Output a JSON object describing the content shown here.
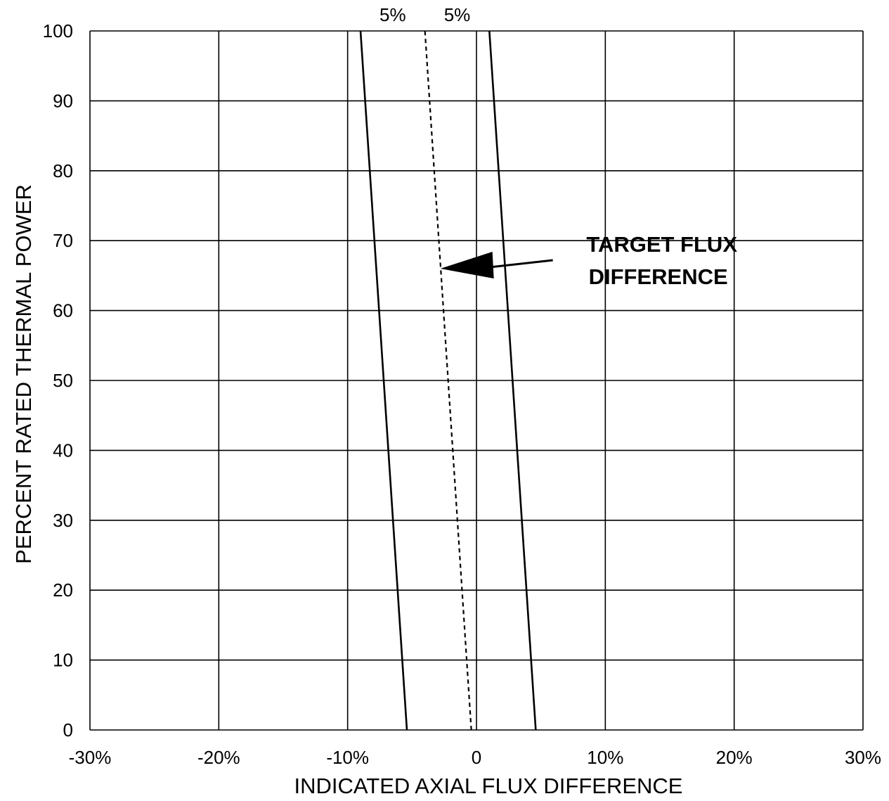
{
  "chart_data": {
    "type": "line",
    "title": "",
    "xlabel": "INDICATED AXIAL FLUX DIFFERENCE",
    "ylabel": "PERCENT RATED THERMAL POWER",
    "xlim": [
      -30,
      30
    ],
    "ylim": [
      0,
      100
    ],
    "grid": true,
    "x_ticks": [
      -30,
      -20,
      -10,
      0,
      10,
      20,
      30
    ],
    "x_tick_labels": [
      "-30%",
      "-20%",
      "-10%",
      "0",
      "10%",
      "20%",
      "30%"
    ],
    "y_ticks": [
      0,
      10,
      20,
      30,
      40,
      50,
      60,
      70,
      80,
      90,
      100
    ],
    "y_tick_labels": [
      "0",
      "10",
      "20",
      "30",
      "40",
      "50",
      "60",
      "70",
      "80",
      "90",
      "100"
    ],
    "series": [
      {
        "style": "solid",
        "x": [
          -5.4,
          -9.0
        ],
        "y": [
          0,
          100
        ]
      },
      {
        "style": "dashed",
        "x": [
          -0.4,
          -4.0
        ],
        "y": [
          0,
          100
        ]
      },
      {
        "style": "solid",
        "x": [
          4.6,
          1.0
        ],
        "y": [
          0,
          100
        ]
      }
    ],
    "band_labels": [
      "5%",
      "5%"
    ],
    "annotation": {
      "line1": "TARGET FLUX",
      "line2": "DIFFERENCE",
      "arrow_target": {
        "x": -2.8,
        "y": 66
      }
    }
  }
}
